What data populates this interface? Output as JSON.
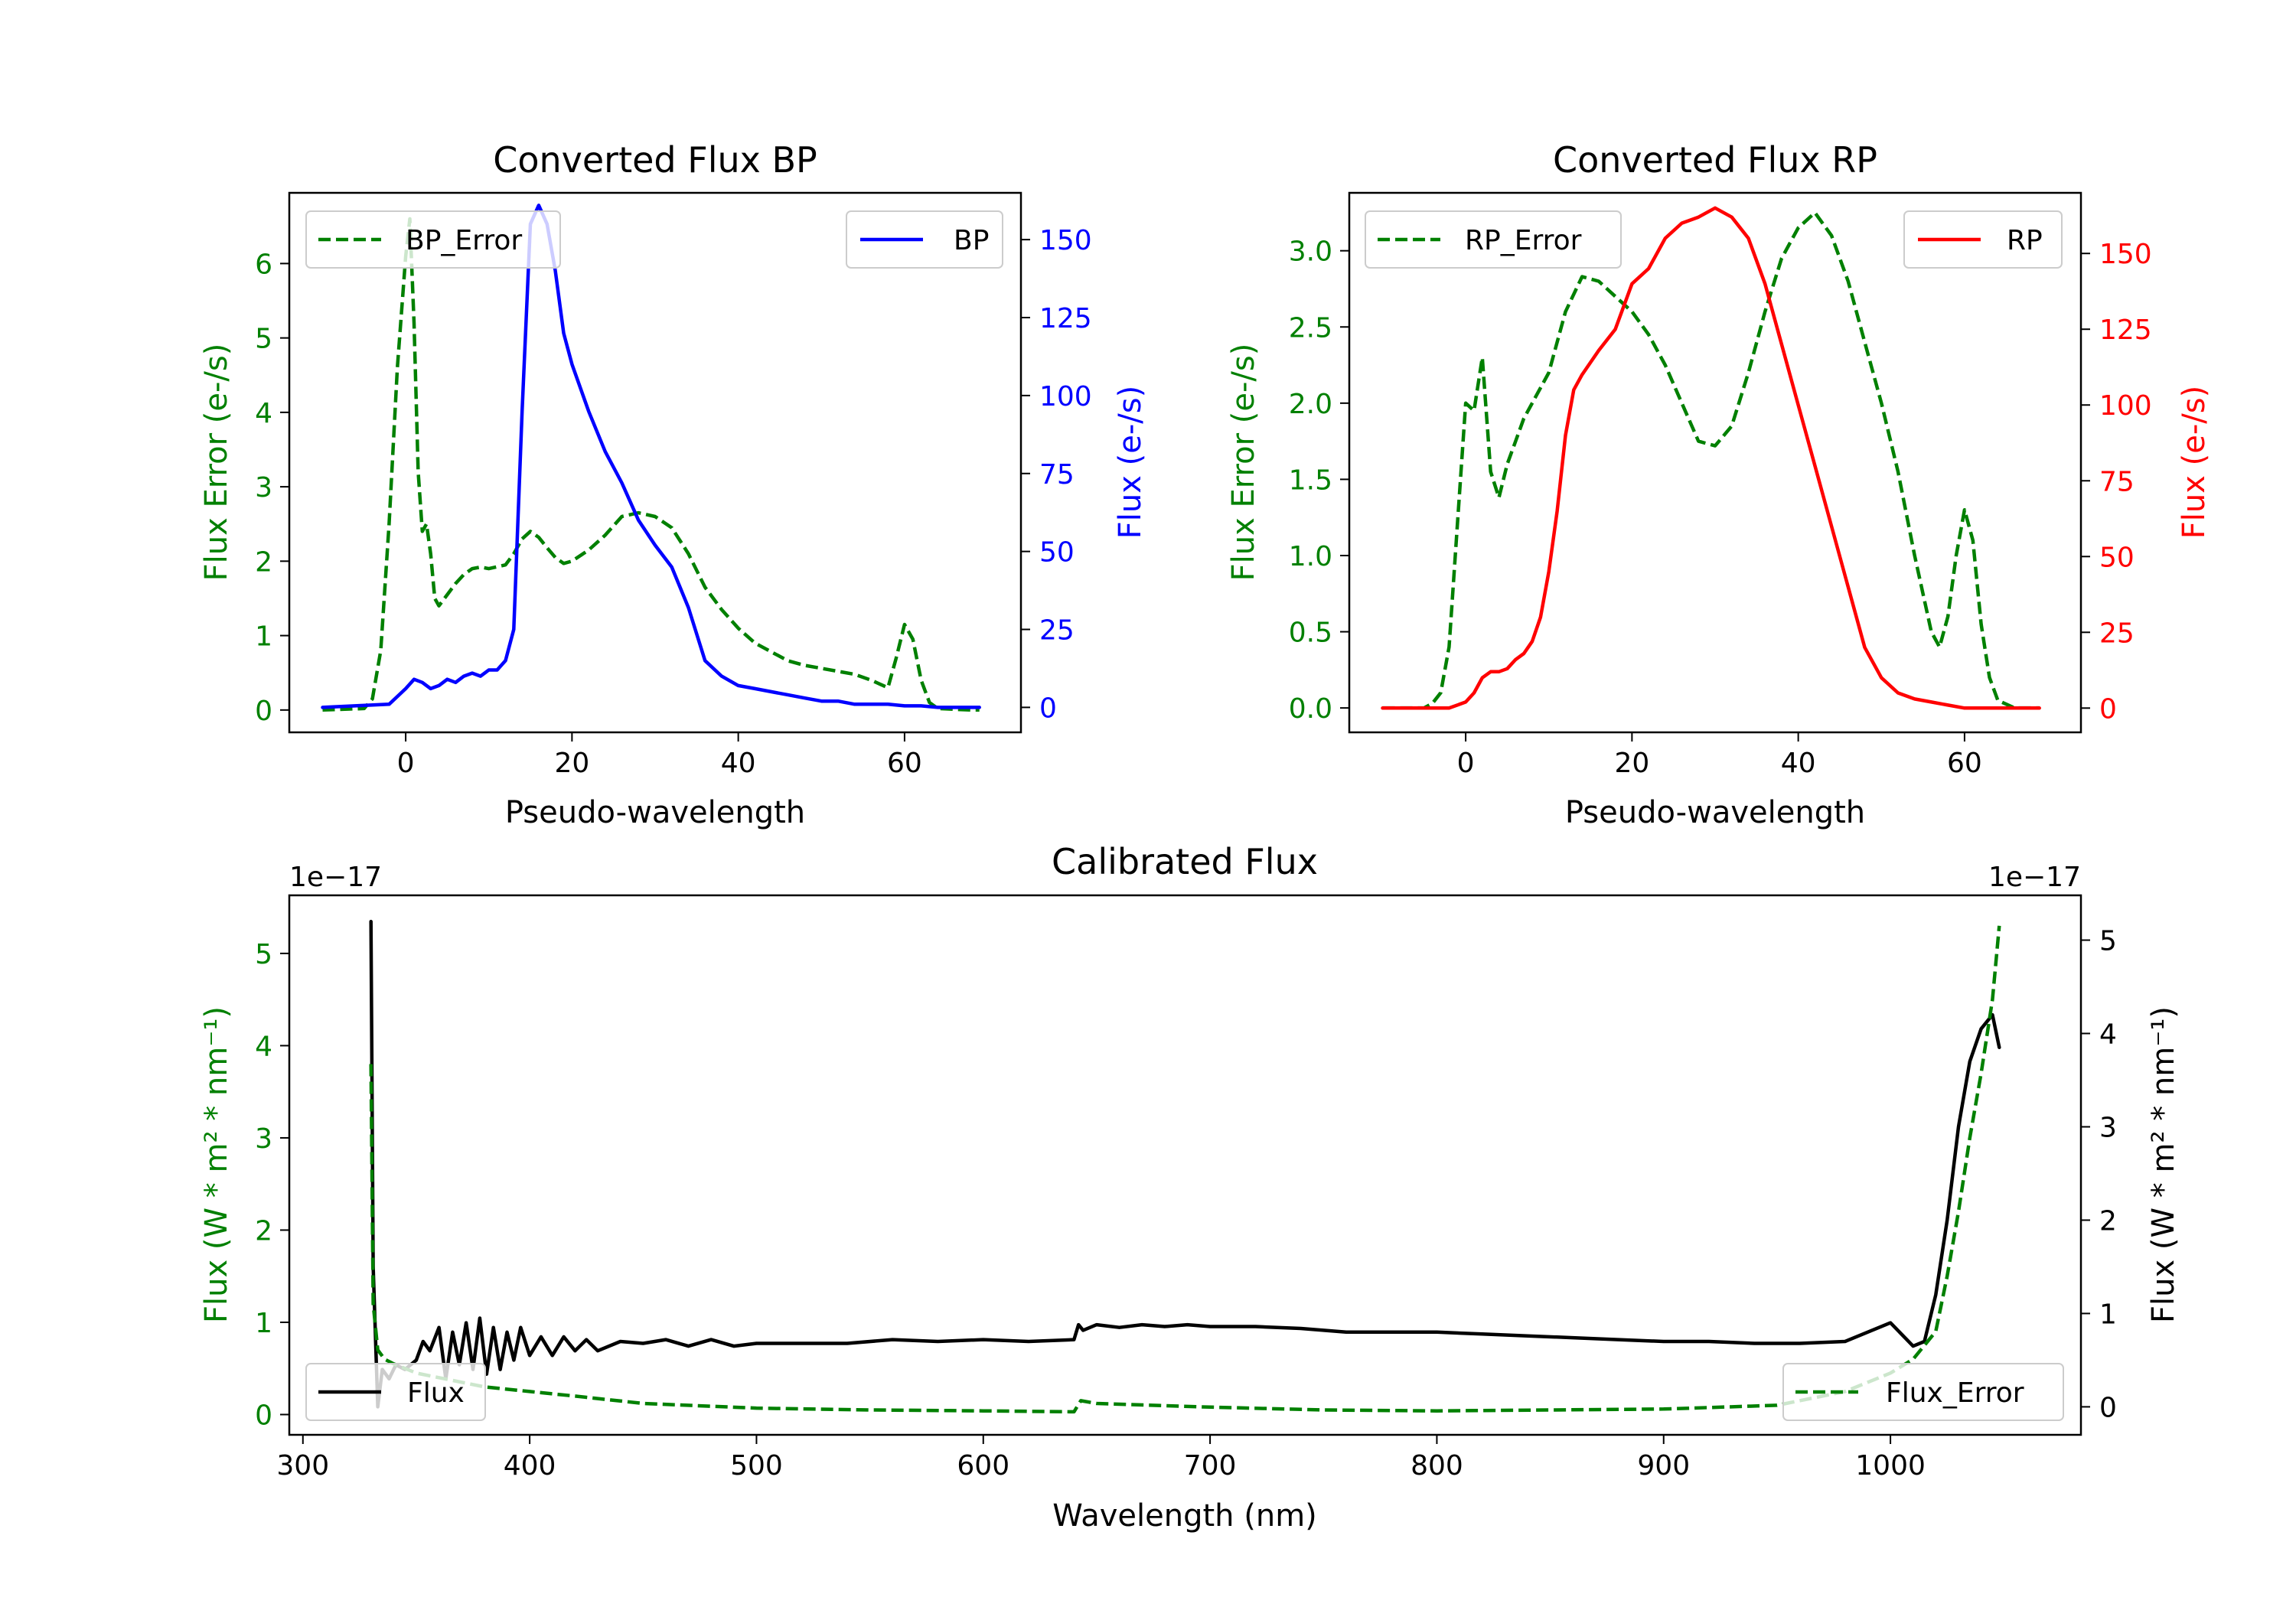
{
  "chart_data": [
    {
      "id": "bp",
      "type": "line",
      "title": "Converted Flux BP",
      "xlabel": "Pseudo-wavelength",
      "xlim": [
        -14,
        74
      ],
      "xticks": [
        0,
        20,
        40,
        60
      ],
      "left_axis": {
        "label": "Flux Error (e-/s)",
        "color": "#008000",
        "lim": [
          -0.3,
          6.95
        ],
        "ticks": [
          0,
          1,
          2,
          3,
          4,
          5,
          6
        ],
        "tick_labels": [
          "0",
          "1",
          "2",
          "3",
          "4",
          "5",
          "6"
        ]
      },
      "right_axis": {
        "label": "Flux (e-/s)",
        "color": "#0000ff",
        "lim": [
          -8,
          165
        ],
        "ticks": [
          0,
          25,
          50,
          75,
          100,
          125,
          150
        ],
        "tick_labels": [
          "0",
          "25",
          "50",
          "75",
          "100",
          "125",
          "150"
        ]
      },
      "series": [
        {
          "name": "BP_Error",
          "axis": "left",
          "color": "#008000",
          "dashed": true,
          "x": [
            -10,
            -5,
            -4,
            -3,
            -2,
            -1,
            0,
            0.5,
            1,
            1.5,
            2,
            2.5,
            3,
            3.5,
            4,
            5,
            6,
            7,
            8,
            9,
            10,
            12,
            13,
            14,
            15,
            16,
            17,
            18,
            19,
            20,
            22,
            24,
            26,
            28,
            30,
            32,
            34,
            36,
            38,
            40,
            42,
            44,
            46,
            48,
            50,
            52,
            54,
            56,
            57,
            58,
            59,
            60,
            61,
            62,
            63,
            64,
            66,
            68,
            69
          ],
          "y": [
            0,
            0.02,
            0.15,
            0.8,
            2.5,
            4.6,
            6.1,
            6.6,
            5.2,
            3.2,
            2.4,
            2.5,
            2.1,
            1.5,
            1.4,
            1.55,
            1.7,
            1.82,
            1.9,
            1.92,
            1.9,
            1.95,
            2.1,
            2.3,
            2.4,
            2.32,
            2.18,
            2.05,
            1.97,
            2.0,
            2.15,
            2.35,
            2.6,
            2.65,
            2.6,
            2.45,
            2.1,
            1.65,
            1.35,
            1.1,
            0.9,
            0.78,
            0.66,
            0.6,
            0.56,
            0.52,
            0.48,
            0.4,
            0.35,
            0.3,
            0.7,
            1.15,
            0.95,
            0.4,
            0.1,
            0.02,
            0.01,
            0,
            0
          ]
        },
        {
          "name": "BP",
          "axis": "right",
          "color": "#0000ff",
          "dashed": false,
          "x": [
            -10,
            -2,
            0,
            1,
            2,
            3,
            4,
            5,
            6,
            7,
            8,
            9,
            10,
            11,
            12,
            13,
            14,
            15,
            16,
            17,
            18,
            19,
            20,
            22,
            24,
            26,
            28,
            30,
            32,
            34,
            36,
            38,
            40,
            42,
            44,
            46,
            48,
            50,
            52,
            54,
            56,
            58,
            60,
            62,
            64,
            66,
            68,
            69
          ],
          "y": [
            0,
            1,
            6,
            9,
            8,
            6,
            7,
            9,
            8,
            10,
            11,
            10,
            12,
            12,
            15,
            25,
            95,
            155,
            161,
            155,
            140,
            120,
            110,
            95,
            82,
            72,
            60,
            52,
            45,
            32,
            15,
            10,
            7,
            6,
            5,
            4,
            3,
            2,
            2,
            1,
            1,
            1,
            0.5,
            0.5,
            0,
            0,
            0,
            0
          ]
        }
      ],
      "legends": [
        {
          "series": "BP_Error",
          "label": "BP_Error",
          "loc": "upper left"
        },
        {
          "series": "BP",
          "label": "BP",
          "loc": "upper right"
        }
      ]
    },
    {
      "id": "rp",
      "type": "line",
      "title": "Converted Flux RP",
      "xlabel": "Pseudo-wavelength",
      "xlim": [
        -14,
        74
      ],
      "xticks": [
        0,
        20,
        40,
        60
      ],
      "left_axis": {
        "label": "Flux Error (e-/s)",
        "color": "#008000",
        "lim": [
          -0.16,
          3.38
        ],
        "ticks": [
          0,
          0.5,
          1,
          1.5,
          2,
          2.5,
          3
        ],
        "tick_labels": [
          "0.0",
          "0.5",
          "1.0",
          "1.5",
          "2.0",
          "2.5",
          "3.0"
        ]
      },
      "right_axis": {
        "label": "Flux (e-/s)",
        "color": "#ff0000",
        "lim": [
          -8,
          170
        ],
        "ticks": [
          0,
          25,
          50,
          75,
          100,
          125,
          150
        ],
        "tick_labels": [
          "0",
          "25",
          "50",
          "75",
          "100",
          "125",
          "150"
        ]
      },
      "series": [
        {
          "name": "RP_Error",
          "axis": "left",
          "color": "#008000",
          "dashed": true,
          "x": [
            -10,
            -5,
            -4,
            -3,
            -2,
            -1,
            0,
            1,
            2,
            3,
            4,
            5,
            6,
            7,
            8,
            10,
            12,
            14,
            16,
            18,
            20,
            22,
            24,
            26,
            28,
            30,
            32,
            34,
            36,
            38,
            40,
            42,
            44,
            46,
            48,
            50,
            52,
            54,
            56,
            57,
            58,
            59,
            60,
            61,
            62,
            63,
            64,
            66,
            68,
            69
          ],
          "y": [
            0,
            0,
            0.03,
            0.1,
            0.4,
            1.2,
            2.0,
            1.95,
            2.3,
            1.55,
            1.38,
            1.6,
            1.75,
            1.9,
            2.0,
            2.2,
            2.6,
            2.83,
            2.8,
            2.7,
            2.6,
            2.45,
            2.25,
            2.0,
            1.75,
            1.72,
            1.85,
            2.2,
            2.6,
            2.95,
            3.15,
            3.25,
            3.1,
            2.8,
            2.4,
            2.0,
            1.55,
            1.0,
            0.5,
            0.4,
            0.6,
            1.0,
            1.3,
            1.1,
            0.55,
            0.2,
            0.05,
            0,
            0,
            0
          ]
        },
        {
          "name": "RP",
          "axis": "right",
          "color": "#ff0000",
          "dashed": false,
          "x": [
            -10,
            -2,
            0,
            1,
            2,
            3,
            4,
            5,
            6,
            7,
            8,
            9,
            10,
            11,
            12,
            13,
            14,
            16,
            18,
            20,
            22,
            24,
            26,
            28,
            30,
            32,
            34,
            36,
            38,
            40,
            42,
            44,
            46,
            48,
            50,
            52,
            54,
            56,
            58,
            60,
            62,
            64,
            66,
            68,
            69
          ],
          "y": [
            0,
            0,
            2,
            5,
            10,
            12,
            12,
            13,
            16,
            18,
            22,
            30,
            45,
            65,
            90,
            105,
            110,
            118,
            125,
            140,
            145,
            155,
            160,
            162,
            165,
            162,
            155,
            140,
            120,
            100,
            80,
            60,
            40,
            20,
            10,
            5,
            3,
            2,
            1,
            0,
            0,
            0,
            0,
            0,
            0
          ]
        }
      ],
      "legends": [
        {
          "series": "RP_Error",
          "label": "RP_Error",
          "loc": "upper left"
        },
        {
          "series": "RP",
          "label": "RP",
          "loc": "upper right"
        }
      ]
    },
    {
      "id": "cal",
      "type": "line",
      "title": "Calibrated Flux",
      "xlabel": "Wavelength (nm)",
      "xlim": [
        294,
        1084
      ],
      "xticks": [
        300,
        400,
        500,
        600,
        700,
        800,
        900,
        1000
      ],
      "left_axis": {
        "label": "Flux (W * m² * nm⁻¹)",
        "color": "#008000",
        "multiplier": "1e−17",
        "lim": [
          -0.22,
          5.63
        ],
        "ticks": [
          0,
          1,
          2,
          3,
          4,
          5
        ],
        "tick_labels": [
          "0",
          "1",
          "2",
          "3",
          "4",
          "5"
        ]
      },
      "right_axis": {
        "label": "Flux (W * m² * nm⁻¹)",
        "color": "#000000",
        "multiplier": "1e−17",
        "lim": [
          -0.3,
          5.48
        ],
        "ticks": [
          0,
          1,
          2,
          3,
          4,
          5
        ],
        "tick_labels": [
          "0",
          "1",
          "2",
          "3",
          "4",
          "5"
        ]
      },
      "series": [
        {
          "name": "Flux",
          "axis": "right",
          "color": "#000000",
          "dashed": false,
          "x": [
            330,
            331,
            333,
            335,
            338,
            341,
            345,
            350,
            353,
            356,
            360,
            363,
            366,
            369,
            372,
            375,
            378,
            381,
            384,
            387,
            390,
            393,
            396,
            400,
            405,
            410,
            415,
            420,
            425,
            430,
            440,
            450,
            460,
            470,
            480,
            490,
            500,
            520,
            540,
            560,
            580,
            600,
            620,
            640,
            642,
            644,
            650,
            660,
            670,
            680,
            690,
            700,
            720,
            740,
            760,
            780,
            800,
            820,
            840,
            860,
            880,
            900,
            920,
            940,
            960,
            980,
            1000,
            1010,
            1015,
            1020,
            1025,
            1030,
            1035,
            1040,
            1045,
            1048
          ],
          "y": [
            5.2,
            1.5,
            0.0,
            0.4,
            0.3,
            0.45,
            0.4,
            0.5,
            0.7,
            0.6,
            0.85,
            0.3,
            0.8,
            0.45,
            0.9,
            0.4,
            0.95,
            0.35,
            0.85,
            0.4,
            0.8,
            0.5,
            0.85,
            0.55,
            0.75,
            0.55,
            0.75,
            0.6,
            0.72,
            0.6,
            0.7,
            0.68,
            0.72,
            0.65,
            0.72,
            0.65,
            0.68,
            0.68,
            0.68,
            0.72,
            0.7,
            0.72,
            0.7,
            0.72,
            0.88,
            0.82,
            0.88,
            0.85,
            0.88,
            0.86,
            0.88,
            0.86,
            0.86,
            0.84,
            0.8,
            0.8,
            0.8,
            0.78,
            0.76,
            0.74,
            0.72,
            0.7,
            0.7,
            0.68,
            0.68,
            0.7,
            0.9,
            0.65,
            0.7,
            1.2,
            2.0,
            3.0,
            3.7,
            4.05,
            4.2,
            3.85
          ]
        },
        {
          "name": "Flux_Error",
          "axis": "left",
          "color": "#008000",
          "dashed": true,
          "x": [
            330,
            331,
            333,
            336,
            340,
            345,
            350,
            360,
            380,
            400,
            420,
            450,
            500,
            550,
            600,
            640,
            643,
            650,
            700,
            750,
            800,
            850,
            900,
            950,
            980,
            1000,
            1010,
            1020,
            1025,
            1030,
            1035,
            1040,
            1045,
            1048
          ],
          "y": [
            3.8,
            1.2,
            0.7,
            0.6,
            0.55,
            0.5,
            0.45,
            0.4,
            0.3,
            0.25,
            0.2,
            0.12,
            0.07,
            0.05,
            0.04,
            0.03,
            0.15,
            0.12,
            0.08,
            0.05,
            0.04,
            0.05,
            0.06,
            0.1,
            0.25,
            0.45,
            0.6,
            0.9,
            1.5,
            2.2,
            3.0,
            3.7,
            4.5,
            5.3
          ]
        }
      ],
      "legends": [
        {
          "series": "Flux",
          "label": "Flux",
          "loc": "lower left"
        },
        {
          "series": "Flux_Error",
          "label": "Flux_Error",
          "loc": "lower right"
        }
      ]
    }
  ]
}
